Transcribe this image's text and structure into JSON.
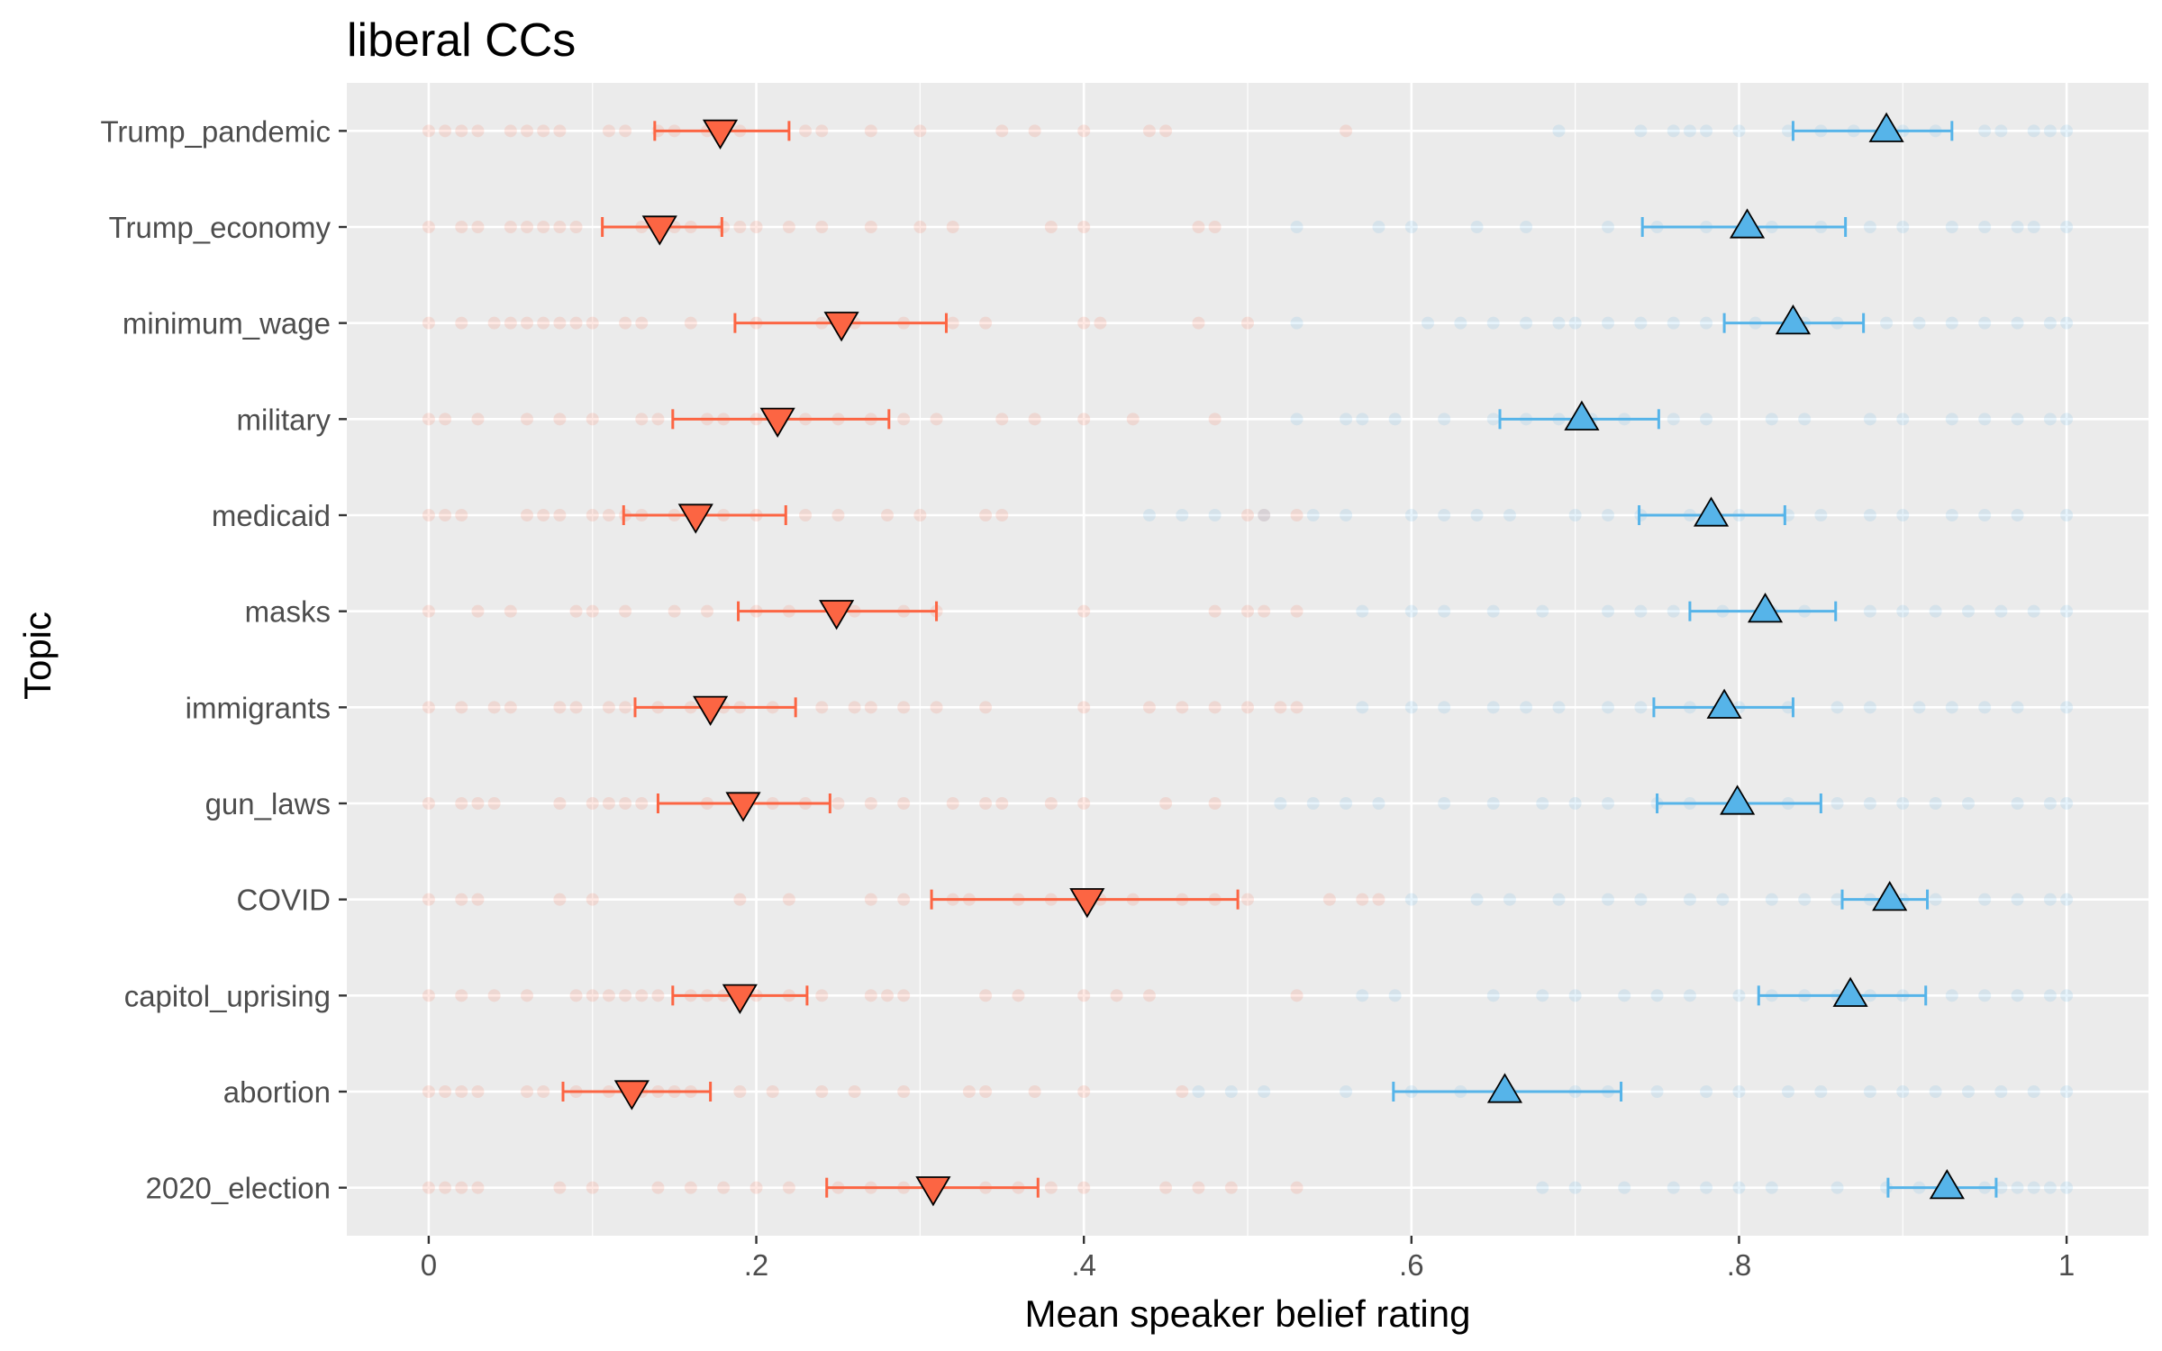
{
  "chart_data": {
    "type": "scatter",
    "title": "liberal CCs",
    "xlabel": "Mean speaker belief rating",
    "ylabel": "Topic",
    "xlim": [
      -0.05,
      1.05
    ],
    "x_ticks": [
      0,
      0.2,
      0.4,
      0.6,
      0.8,
      1
    ],
    "x_tick_labels": [
      "0",
      ".2",
      ".4",
      ".6",
      ".8",
      "1"
    ],
    "grid": true,
    "panel_background": "#ebebeb",
    "categories": [
      "Trump_pandemic",
      "Trump_economy",
      "minimum_wage",
      "military",
      "medicaid",
      "masks",
      "immigrants",
      "gun_laws",
      "COVID",
      "capitol_uprising",
      "abortion",
      "2020_election"
    ],
    "series": [
      {
        "color": "#fc6543",
        "marker": "down-triangle",
        "means": [
          0.178,
          0.141,
          0.252,
          0.213,
          0.163,
          0.249,
          0.172,
          0.192,
          0.402,
          0.19,
          0.124,
          0.308
        ],
        "ci_low": [
          0.138,
          0.106,
          0.187,
          0.149,
          0.119,
          0.189,
          0.126,
          0.14,
          0.307,
          0.149,
          0.082,
          0.243
        ],
        "ci_high": [
          0.22,
          0.179,
          0.316,
          0.281,
          0.218,
          0.31,
          0.224,
          0.245,
          0.494,
          0.231,
          0.172,
          0.372
        ],
        "raw_points": [
          [
            0,
            0.01,
            0.02,
            0.03,
            0.05,
            0.06,
            0.07,
            0.08,
            0.11,
            0.12,
            0.14,
            0.15,
            0.17,
            0.19,
            0.23,
            0.24,
            0.27,
            0.3,
            0.35,
            0.37,
            0.4,
            0.44,
            0.45,
            0.56
          ],
          [
            0,
            0.02,
            0.03,
            0.05,
            0.06,
            0.07,
            0.08,
            0.09,
            0.13,
            0.15,
            0.16,
            0.18,
            0.19,
            0.2,
            0.22,
            0.24,
            0.27,
            0.3,
            0.32,
            0.38,
            0.4,
            0.47,
            0.48
          ],
          [
            0,
            0.02,
            0.04,
            0.05,
            0.06,
            0.07,
            0.08,
            0.09,
            0.1,
            0.12,
            0.13,
            0.16,
            0.2,
            0.24,
            0.26,
            0.29,
            0.32,
            0.34,
            0.4,
            0.41,
            0.47,
            0.5
          ],
          [
            0,
            0.01,
            0.03,
            0.06,
            0.08,
            0.1,
            0.13,
            0.14,
            0.17,
            0.18,
            0.2,
            0.23,
            0.25,
            0.27,
            0.29,
            0.31,
            0.35,
            0.37,
            0.4,
            0.43,
            0.48
          ],
          [
            0,
            0.01,
            0.02,
            0.06,
            0.07,
            0.08,
            0.1,
            0.11,
            0.12,
            0.13,
            0.15,
            0.18,
            0.2,
            0.23,
            0.25,
            0.28,
            0.3,
            0.34,
            0.35,
            0.5,
            0.51,
            0.53
          ],
          [
            0,
            0.03,
            0.05,
            0.09,
            0.1,
            0.12,
            0.15,
            0.17,
            0.2,
            0.22,
            0.25,
            0.26,
            0.29,
            0.31,
            0.4,
            0.48,
            0.5,
            0.51,
            0.53
          ],
          [
            0,
            0.02,
            0.04,
            0.05,
            0.08,
            0.09,
            0.11,
            0.12,
            0.14,
            0.16,
            0.18,
            0.19,
            0.21,
            0.24,
            0.26,
            0.27,
            0.29,
            0.31,
            0.34,
            0.4,
            0.44,
            0.46,
            0.48,
            0.5,
            0.52,
            0.53
          ],
          [
            0,
            0.02,
            0.03,
            0.04,
            0.08,
            0.1,
            0.11,
            0.12,
            0.13,
            0.17,
            0.19,
            0.21,
            0.23,
            0.25,
            0.27,
            0.29,
            0.32,
            0.34,
            0.35,
            0.38,
            0.4,
            0.45,
            0.48
          ],
          [
            0,
            0.02,
            0.03,
            0.08,
            0.1,
            0.19,
            0.22,
            0.27,
            0.29,
            0.32,
            0.33,
            0.36,
            0.38,
            0.41,
            0.43,
            0.46,
            0.48,
            0.5,
            0.55,
            0.57,
            0.58
          ],
          [
            0,
            0.02,
            0.04,
            0.06,
            0.09,
            0.1,
            0.11,
            0.12,
            0.13,
            0.14,
            0.16,
            0.17,
            0.18,
            0.2,
            0.22,
            0.24,
            0.27,
            0.28,
            0.29,
            0.34,
            0.36,
            0.4,
            0.42,
            0.44,
            0.53
          ],
          [
            0,
            0.01,
            0.02,
            0.03,
            0.06,
            0.07,
            0.09,
            0.11,
            0.13,
            0.14,
            0.15,
            0.16,
            0.19,
            0.21,
            0.24,
            0.26,
            0.29,
            0.33,
            0.34,
            0.37,
            0.4,
            0.46
          ],
          [
            0,
            0.01,
            0.02,
            0.03,
            0.08,
            0.1,
            0.14,
            0.16,
            0.18,
            0.2,
            0.22,
            0.25,
            0.27,
            0.29,
            0.31,
            0.34,
            0.36,
            0.38,
            0.4,
            0.45,
            0.47,
            0.49,
            0.53
          ]
        ]
      },
      {
        "color": "#56b4e9",
        "marker": "up-triangle",
        "means": [
          0.89,
          0.805,
          0.833,
          0.704,
          0.783,
          0.816,
          0.791,
          0.799,
          0.892,
          0.868,
          0.657,
          0.927
        ],
        "ci_low": [
          0.833,
          0.741,
          0.791,
          0.654,
          0.739,
          0.77,
          0.748,
          0.75,
          0.863,
          0.812,
          0.589,
          0.891
        ],
        "ci_high": [
          0.93,
          0.865,
          0.876,
          0.751,
          0.828,
          0.859,
          0.833,
          0.85,
          0.915,
          0.914,
          0.728,
          0.957
        ],
        "raw_points": [
          [
            0.69,
            0.74,
            0.76,
            0.77,
            0.78,
            0.8,
            0.83,
            0.85,
            0.87,
            0.9,
            0.92,
            0.95,
            0.96,
            0.98,
            0.99,
            1
          ],
          [
            0.53,
            0.58,
            0.6,
            0.64,
            0.67,
            0.72,
            0.75,
            0.78,
            0.82,
            0.85,
            0.88,
            0.9,
            0.93,
            0.95,
            0.97,
            0.98,
            1
          ],
          [
            0.53,
            0.61,
            0.63,
            0.65,
            0.67,
            0.69,
            0.7,
            0.72,
            0.74,
            0.76,
            0.78,
            0.81,
            0.84,
            0.86,
            0.89,
            0.91,
            0.93,
            0.95,
            0.97,
            0.99,
            1
          ],
          [
            0.53,
            0.56,
            0.57,
            0.59,
            0.62,
            0.65,
            0.67,
            0.69,
            0.71,
            0.73,
            0.76,
            0.78,
            0.82,
            0.84,
            0.88,
            0.9,
            0.93,
            0.95,
            0.97,
            0.99,
            1
          ],
          [
            0.44,
            0.46,
            0.48,
            0.51,
            0.54,
            0.56,
            0.6,
            0.62,
            0.64,
            0.66,
            0.7,
            0.72,
            0.74,
            0.77,
            0.8,
            0.83,
            0.85,
            0.88,
            0.9,
            0.93,
            0.95,
            0.97,
            1
          ],
          [
            0.57,
            0.6,
            0.62,
            0.65,
            0.68,
            0.72,
            0.74,
            0.76,
            0.79,
            0.82,
            0.84,
            0.88,
            0.9,
            0.92,
            0.94,
            0.96,
            0.98,
            1
          ],
          [
            0.57,
            0.6,
            0.62,
            0.65,
            0.67,
            0.69,
            0.72,
            0.74,
            0.77,
            0.8,
            0.83,
            0.86,
            0.88,
            0.91,
            0.93,
            0.95,
            0.97,
            1
          ],
          [
            0.52,
            0.54,
            0.56,
            0.58,
            0.62,
            0.65,
            0.68,
            0.7,
            0.72,
            0.75,
            0.77,
            0.8,
            0.83,
            0.86,
            0.88,
            0.9,
            0.92,
            0.94,
            0.97,
            0.99,
            1
          ],
          [
            0.6,
            0.64,
            0.66,
            0.69,
            0.72,
            0.74,
            0.77,
            0.79,
            0.82,
            0.84,
            0.86,
            0.88,
            0.9,
            0.92,
            0.95,
            0.97,
            0.99,
            1
          ],
          [
            0.57,
            0.59,
            0.65,
            0.68,
            0.7,
            0.73,
            0.75,
            0.77,
            0.8,
            0.82,
            0.84,
            0.86,
            0.88,
            0.9,
            0.93,
            0.95,
            0.97,
            0.99,
            1
          ],
          [
            0.47,
            0.49,
            0.51,
            0.56,
            0.6,
            0.63,
            0.66,
            0.7,
            0.72,
            0.75,
            0.78,
            0.8,
            0.83,
            0.85,
            0.88,
            0.9,
            0.92,
            0.94,
            0.96,
            0.98,
            1
          ],
          [
            0.68,
            0.7,
            0.73,
            0.76,
            0.78,
            0.8,
            0.82,
            0.86,
            0.89,
            0.91,
            0.93,
            0.95,
            0.96,
            0.97,
            0.98,
            0.99,
            1
          ]
        ]
      }
    ]
  }
}
